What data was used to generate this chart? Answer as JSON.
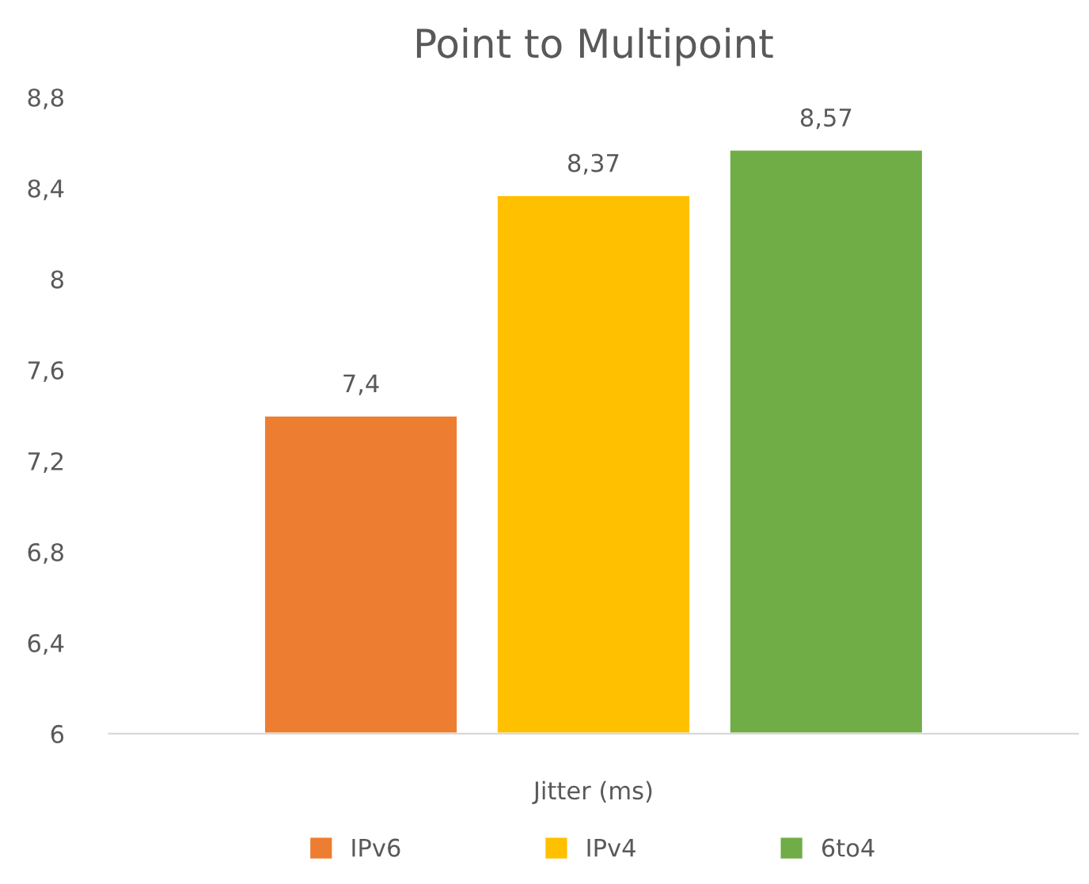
{
  "chart_data": {
    "type": "bar",
    "title": "Point to Multipoint",
    "categories": [
      "Jitter (ms)"
    ],
    "series": [
      {
        "name": "IPv6",
        "color": "#ed7d31",
        "values": [
          7.4
        ],
        "value_labels": [
          "7,4"
        ]
      },
      {
        "name": "IPv4",
        "color": "#ffc000",
        "values": [
          8.37
        ],
        "value_labels": [
          "8,37"
        ]
      },
      {
        "name": "6to4",
        "color": "#70ad47",
        "values": [
          8.57
        ],
        "value_labels": [
          "8,57"
        ]
      }
    ],
    "ylim": [
      6,
      8.8
    ],
    "yticks": [
      {
        "value": 6,
        "label": "6"
      },
      {
        "value": 6.4,
        "label": "6,4"
      },
      {
        "value": 6.8,
        "label": "6,8"
      },
      {
        "value": 7.2,
        "label": "7,2"
      },
      {
        "value": 7.6,
        "label": "7,6"
      },
      {
        "value": 8,
        "label": "8"
      },
      {
        "value": 8.4,
        "label": "8,4"
      },
      {
        "value": 8.8,
        "label": "8,8"
      }
    ],
    "grid": false,
    "legend": "bottom"
  }
}
